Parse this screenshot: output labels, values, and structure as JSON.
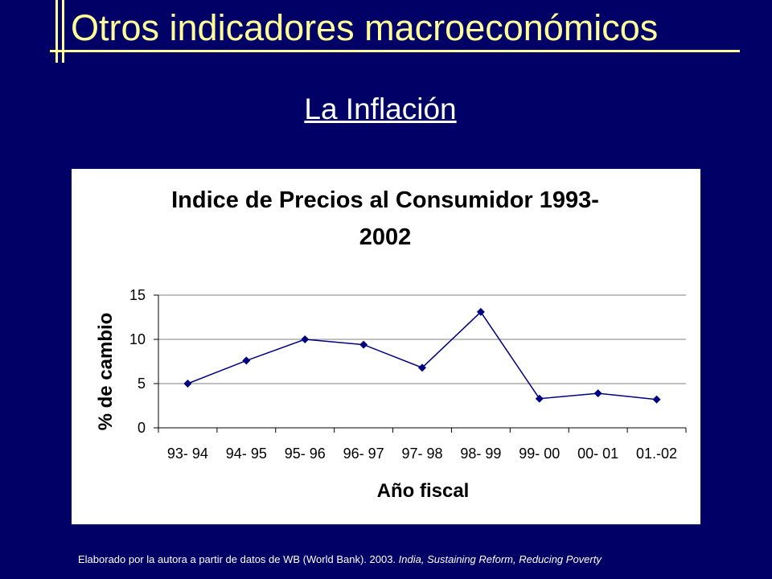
{
  "slide": {
    "title": "Otros indicadores macroeconómicos",
    "subtitle": "La Inflación"
  },
  "source": {
    "text": "Elaborado por la autora a partir de datos de WB (World Bank). 2003. ",
    "italic_text": "India, Sustaining Reform, Reducing Poverty"
  },
  "colors": {
    "background": "#000066",
    "title": "#ffff99",
    "series": "#000080"
  },
  "chart_data": {
    "type": "line",
    "title_lines": [
      "Indice de Precios al Consumidor 1993-",
      "2002"
    ],
    "xlabel": "Año fiscal",
    "ylabel": "% de cambio",
    "categories": [
      "93- 94",
      "94- 95",
      "95- 96",
      "96- 97",
      "97- 98",
      "98- 99",
      "99- 00",
      "00- 01",
      "01.-02"
    ],
    "series": [
      {
        "values": [
          5.0,
          7.6,
          10.0,
          9.4,
          6.8,
          13.1,
          3.3,
          3.9,
          3.2
        ]
      }
    ],
    "ylim": [
      0,
      15
    ],
    "yticks": [
      0,
      5,
      10,
      15
    ],
    "grid": true,
    "legend": "none",
    "marker": "diamond"
  }
}
